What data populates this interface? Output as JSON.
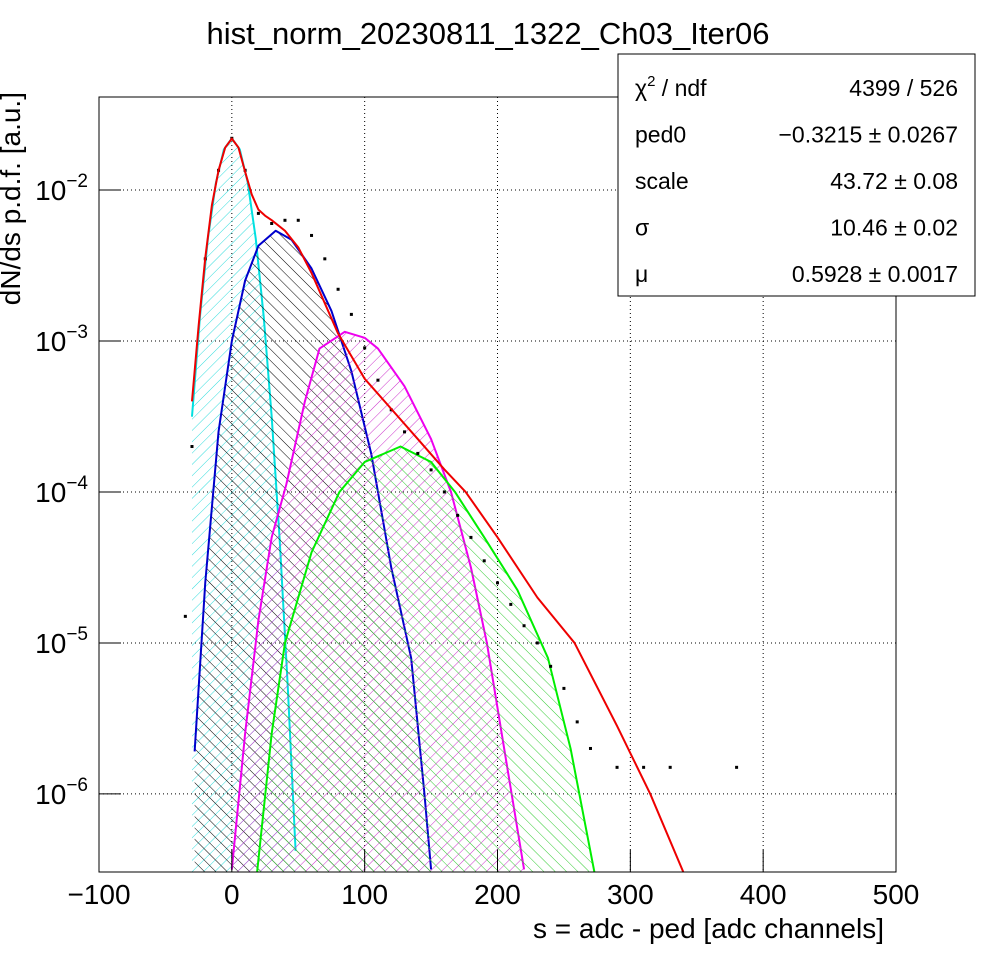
{
  "chart_data": {
    "type": "line",
    "title": "hist_norm_20230811_1322_Ch03_Iter06",
    "x_label": "s = adc - ped [adc channels]",
    "y_label": "dN/ds p.d.f. [a.u.]",
    "log_y": true,
    "grid": true,
    "xlim": [
      -100,
      500
    ],
    "ylim": [
      3.04e-07,
      0.0413
    ],
    "xticks": [
      {
        "value": -100,
        "label": "−100"
      },
      0,
      100,
      200,
      300,
      400,
      500
    ],
    "yticks": [
      {
        "value": 1e-06,
        "label": "10",
        "exponent": "−6"
      },
      {
        "value": 1e-05,
        "label": "10",
        "exponent": "−5"
      },
      {
        "value": 0.0001,
        "label": "10",
        "exponent": "−4"
      },
      {
        "value": 0.001,
        "label": "10",
        "exponent": "−3"
      },
      {
        "value": 0.01,
        "label": "10",
        "exponent": "−2"
      }
    ],
    "series": [
      {
        "color": "#00e0e0",
        "style": "curve",
        "hatch": true,
        "hatch_color": "#33dddd",
        "x": [
          -30,
          -24,
          -18,
          -12,
          -6,
          0,
          6,
          12,
          18,
          24,
          30,
          36,
          42,
          48
        ],
        "values": [
          0.000315,
          0.00145,
          0.00477,
          0.01116,
          0.01856,
          0.022,
          0.01856,
          0.01116,
          0.00477,
          0.00145,
          0.000315,
          4.87e-05,
          5.35e-06,
          4.2e-07
        ]
      },
      {
        "color": "#0000cc",
        "style": "curve",
        "hatch": true,
        "hatch_color": "#000000",
        "x": [
          -28,
          -20,
          -10,
          0,
          10,
          20,
          33,
          45,
          60,
          75,
          90,
          105,
          120,
          135,
          145,
          150
        ],
        "values": [
          1.91e-06,
          2.51e-05,
          0.000251,
          0.001,
          0.00251,
          0.00427,
          0.00537,
          0.00468,
          0.00302,
          0.00158,
          0.000631,
          0.000178,
          3.16e-05,
          7.94e-06,
          1e-06,
          3.16e-07
        ]
      },
      {
        "color": "#ee00ee",
        "style": "curve",
        "hatch": true,
        "hatch_color": "#cc33cc",
        "x": [
          0,
          10,
          20,
          30,
          41,
          55,
          66,
          85,
          100,
          110,
          130,
          150,
          165,
          180,
          192,
          205,
          220
        ],
        "values": [
          3.16e-07,
          2.51e-06,
          1.41e-05,
          5.01e-05,
          0.000112,
          0.000398,
          0.000891,
          0.00115,
          0.00105,
          0.000891,
          0.000501,
          0.000224,
          0.0001,
          3.16e-05,
          1e-05,
          2e-06,
          3.16e-07
        ]
      },
      {
        "color": "#00ee00",
        "style": "curve",
        "hatch": true,
        "hatch_color": "#33cc33",
        "x": [
          19,
          30,
          40,
          60,
          81,
          100,
          127,
          150,
          168,
          190,
          215,
          238,
          255,
          273
        ],
        "values": [
          3.02e-07,
          2.51e-06,
          1e-05,
          3.98e-05,
          0.0001,
          0.000158,
          0.0002,
          0.000158,
          0.0001,
          5.01e-05,
          2.24e-05,
          7.94e-06,
          2e-06,
          3.02e-07
        ]
      },
      {
        "color": "#000000",
        "style": "points",
        "hatch": false,
        "x": [
          -35,
          -30,
          -20,
          -10,
          0,
          10,
          20,
          30,
          40,
          50,
          60,
          70,
          80,
          90,
          100,
          110,
          120,
          130,
          140,
          150,
          160,
          170,
          180,
          190,
          200,
          210,
          220,
          230,
          240,
          250,
          260,
          270,
          290,
          310,
          330,
          380
        ],
        "values": [
          1.5e-05,
          0.0002,
          0.0035,
          0.0135,
          0.022,
          0.0135,
          0.007,
          0.006,
          0.0063,
          0.0063,
          0.005,
          0.0035,
          0.0022,
          0.0015,
          0.0009,
          0.00055,
          0.00035,
          0.00025,
          0.00018,
          0.00014,
          0.0001,
          7e-05,
          5e-05,
          3.5e-05,
          2.5e-05,
          1.8e-05,
          1.3e-05,
          1e-05,
          7e-06,
          5e-06,
          3e-06,
          2e-06,
          1.5e-06,
          1.5e-06,
          1.5e-06,
          1.5e-06
        ]
      },
      {
        "color": "#ee0000",
        "style": "curve",
        "hatch": false,
        "x": [
          -30,
          -25,
          -20,
          -15,
          -10,
          -5,
          0,
          5,
          10,
          15,
          20,
          25,
          30,
          40,
          50,
          60,
          80,
          100,
          120,
          140,
          160,
          176,
          200,
          230,
          258,
          290,
          315,
          340
        ],
        "values": [
          0.000398,
          0.00126,
          0.00355,
          0.00794,
          0.0135,
          0.0191,
          0.0219,
          0.0191,
          0.0132,
          0.00933,
          0.00741,
          0.00676,
          0.00631,
          0.00537,
          0.00417,
          0.00282,
          0.00112,
          0.000562,
          0.000355,
          0.000224,
          0.000141,
          0.0001,
          5.01e-05,
          2e-05,
          1e-05,
          2.82e-06,
          1e-06,
          3.02e-07
        ]
      }
    ],
    "stats": [
      {
        "label": "χ",
        "label_sup": "2",
        "label_rest": " / ndf",
        "value": "4399 / 526"
      },
      {
        "label": "ped0",
        "value": "−0.3215 ± 0.0267"
      },
      {
        "label": "scale",
        "value": "43.72 ± 0.08"
      },
      {
        "label": "σ",
        "value": "10.46 ± 0.02"
      },
      {
        "label": "μ",
        "value": "0.5928 ± 0.0017"
      }
    ]
  }
}
